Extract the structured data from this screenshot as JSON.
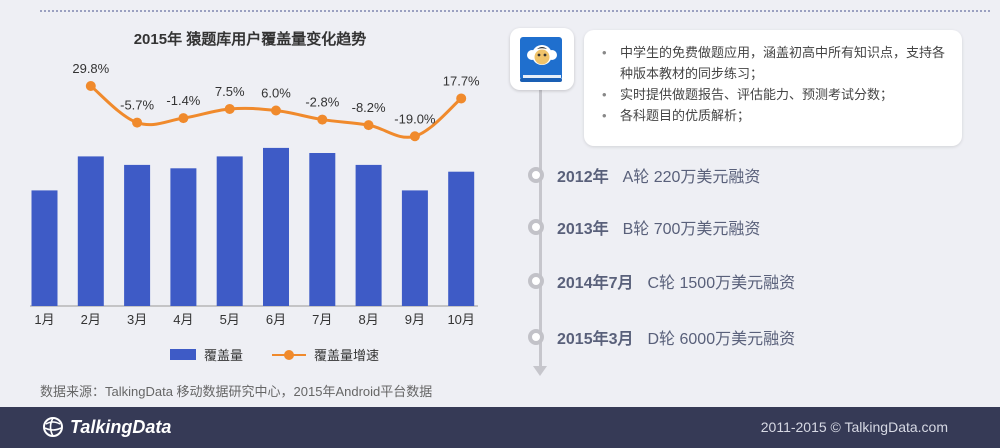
{
  "chart_data": {
    "type": "bar",
    "title": "2015年  猿题库用户覆盖量变化趋势",
    "categories": [
      "1月",
      "2月",
      "3月",
      "4月",
      "5月",
      "6月",
      "7月",
      "8月",
      "9月",
      "10月"
    ],
    "series": [
      {
        "name": "覆盖量",
        "type": "bar",
        "values": [
          0.68,
          0.88,
          0.83,
          0.81,
          0.88,
          0.93,
          0.9,
          0.83,
          0.68,
          0.79
        ]
      },
      {
        "name": "覆盖量增速",
        "type": "line",
        "values": [
          null,
          29.8,
          -5.7,
          -1.4,
          7.5,
          6.0,
          -2.8,
          -8.2,
          -19.0,
          17.7
        ]
      }
    ],
    "data_labels": [
      "29.8%",
      "-5.7%",
      "-1.4%",
      "7.5%",
      "6.0%",
      "-2.8%",
      "-8.2%",
      "-19.0%",
      "17.7%"
    ],
    "legend": "bottom",
    "grid": false,
    "colors": {
      "bar": "#3e5bc6",
      "line": "#f08a2c"
    }
  },
  "source_note": "数据来源：TalkingData 移动数据研究中心，2015年Android平台数据",
  "app_description": [
    "中学生的免费做题应用，涵盖初高中所有知识点，支持各种版本教材的同步练习；",
    "实时提供做题报告、评估能力、预测考试分数；",
    "各科题目的优质解析；"
  ],
  "milestones": [
    {
      "year": "2012年",
      "detail": "A轮   220万美元融资"
    },
    {
      "year": "2013年",
      "detail": "B轮   700万美元融资"
    },
    {
      "year": "2014年7月",
      "detail": "C轮   1500万美元融资"
    },
    {
      "year": "2015年3月",
      "detail": "D轮   6000万美元融资"
    }
  ],
  "footer": {
    "brand": "TalkingData",
    "copyright": "2011-2015 © TalkingData.com"
  },
  "colors": {
    "background": "#eeeff4",
    "footer": "#363a56",
    "timeline_text": "#59607a"
  }
}
